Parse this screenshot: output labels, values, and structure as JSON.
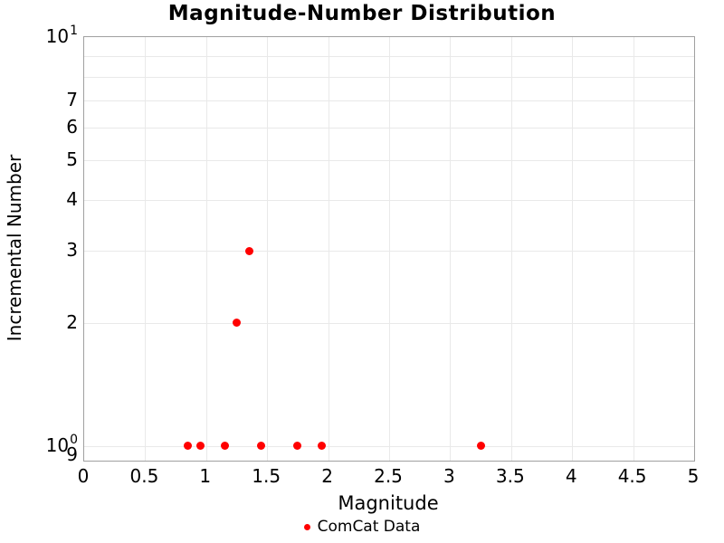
{
  "chart_data": {
    "type": "scatter",
    "title": "Magnitude-Number Distribution",
    "xlabel": "Magnitude",
    "ylabel": "Incremental Number",
    "x_scale": "linear",
    "y_scale": "log",
    "xlim": [
      0,
      5
    ],
    "ylim": [
      0.92,
      10
    ],
    "grid": true,
    "legend_position": "bottom-center",
    "series": [
      {
        "name": "ComCat Data",
        "color": "#ff0000",
        "marker": "circle",
        "points": [
          {
            "x": 0.85,
            "y": 1
          },
          {
            "x": 0.95,
            "y": 1
          },
          {
            "x": 1.15,
            "y": 1
          },
          {
            "x": 1.25,
            "y": 2
          },
          {
            "x": 1.35,
            "y": 3
          },
          {
            "x": 1.45,
            "y": 1
          },
          {
            "x": 1.75,
            "y": 1
          },
          {
            "x": 1.95,
            "y": 1
          },
          {
            "x": 3.25,
            "y": 1
          }
        ]
      }
    ],
    "x_ticks": [
      {
        "value": 0,
        "label": "0"
      },
      {
        "value": 0.5,
        "label": "0.5"
      },
      {
        "value": 1,
        "label": "1"
      },
      {
        "value": 1.5,
        "label": "1.5"
      },
      {
        "value": 2,
        "label": "2"
      },
      {
        "value": 2.5,
        "label": "2.5"
      },
      {
        "value": 3,
        "label": "3"
      },
      {
        "value": 3.5,
        "label": "3.5"
      },
      {
        "value": 4,
        "label": "4"
      },
      {
        "value": 4.5,
        "label": "4.5"
      },
      {
        "value": 5,
        "label": "5"
      }
    ],
    "y_ticks": [
      {
        "value": 10,
        "label": "10",
        "exponent": "1"
      },
      {
        "value": 7,
        "label": "7"
      },
      {
        "value": 6,
        "label": "6"
      },
      {
        "value": 5,
        "label": "5"
      },
      {
        "value": 4,
        "label": "4"
      },
      {
        "value": 3,
        "label": "3"
      },
      {
        "value": 2,
        "label": "2"
      },
      {
        "value": 1,
        "label": "10",
        "exponent": "0"
      },
      {
        "value": 0.9,
        "label": "9",
        "y_override": 502
      }
    ],
    "x_gridlines": [
      0,
      0.5,
      1,
      1.5,
      2,
      2.5,
      3,
      3.5,
      4,
      4.5,
      5
    ],
    "y_gridlines": [
      1,
      2,
      3,
      4,
      5,
      6,
      7,
      8,
      9,
      10
    ]
  },
  "colors": {
    "background": "#ffffff",
    "text": "#000000",
    "grid": "#e9e9e9",
    "axis_border": "#a0a0a0",
    "marker": "#ff0000"
  }
}
